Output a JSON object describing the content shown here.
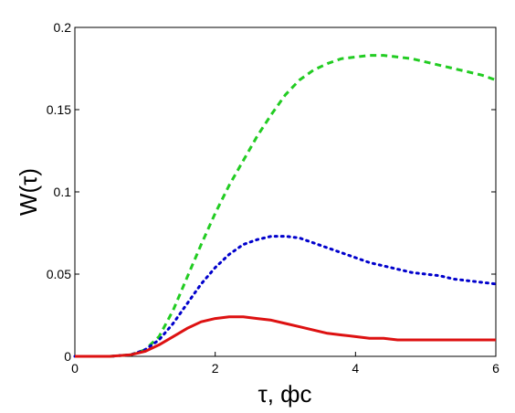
{
  "chart_data": {
    "type": "line",
    "title": "",
    "xlabel": "τ, фс",
    "ylabel": "W(τ)",
    "xlim": [
      0,
      6
    ],
    "ylim": [
      0,
      0.2
    ],
    "x_ticks": [
      0,
      2,
      4,
      6
    ],
    "x_tick_labels": [
      "0",
      "2",
      "4",
      "6"
    ],
    "y_ticks": [
      0,
      0.05,
      0.1,
      0.15,
      0.2
    ],
    "y_tick_labels": [
      "0",
      "0.05",
      "0.1",
      "0.15",
      "0.2"
    ],
    "grid": false,
    "legend": "none",
    "series": [
      {
        "color": "#22cc22",
        "style": "dashed",
        "x": [
          0,
          0.5,
          0.8,
          1.0,
          1.2,
          1.4,
          1.6,
          1.8,
          2.0,
          2.2,
          2.4,
          2.6,
          2.8,
          3.0,
          3.2,
          3.4,
          3.6,
          3.8,
          4.0,
          4.2,
          4.4,
          4.6,
          4.8,
          5.0,
          5.2,
          5.4,
          5.6,
          5.8,
          6.0
        ],
        "y": [
          0,
          0,
          0.001,
          0.004,
          0.012,
          0.028,
          0.048,
          0.068,
          0.087,
          0.104,
          0.119,
          0.134,
          0.147,
          0.159,
          0.168,
          0.174,
          0.178,
          0.181,
          0.182,
          0.183,
          0.183,
          0.182,
          0.181,
          0.179,
          0.177,
          0.175,
          0.173,
          0.171,
          0.168
        ]
      },
      {
        "color": "#0000cc",
        "style": "dotted",
        "x": [
          0,
          0.5,
          0.8,
          1.0,
          1.2,
          1.4,
          1.6,
          1.8,
          2.0,
          2.2,
          2.4,
          2.6,
          2.8,
          3.0,
          3.2,
          3.4,
          3.6,
          3.8,
          4.0,
          4.2,
          4.4,
          4.6,
          4.8,
          5.0,
          5.2,
          5.4,
          5.6,
          5.8,
          6.0
        ],
        "y": [
          0,
          0,
          0.001,
          0.004,
          0.01,
          0.02,
          0.032,
          0.044,
          0.054,
          0.062,
          0.068,
          0.071,
          0.073,
          0.073,
          0.072,
          0.069,
          0.066,
          0.063,
          0.06,
          0.057,
          0.055,
          0.053,
          0.051,
          0.05,
          0.049,
          0.047,
          0.046,
          0.045,
          0.044
        ]
      },
      {
        "color": "#dd1111",
        "style": "solid",
        "x": [
          0,
          0.5,
          0.8,
          1.0,
          1.2,
          1.4,
          1.6,
          1.8,
          2.0,
          2.2,
          2.4,
          2.6,
          2.8,
          3.0,
          3.2,
          3.4,
          3.6,
          3.8,
          4.0,
          4.2,
          4.4,
          4.6,
          4.8,
          5.0,
          5.2,
          5.4,
          5.6,
          5.8,
          6.0
        ],
        "y": [
          0,
          0,
          0.001,
          0.003,
          0.007,
          0.012,
          0.017,
          0.021,
          0.023,
          0.024,
          0.024,
          0.023,
          0.022,
          0.02,
          0.018,
          0.016,
          0.014,
          0.013,
          0.012,
          0.011,
          0.011,
          0.01,
          0.01,
          0.01,
          0.01,
          0.01,
          0.01,
          0.01,
          0.01
        ]
      }
    ]
  }
}
